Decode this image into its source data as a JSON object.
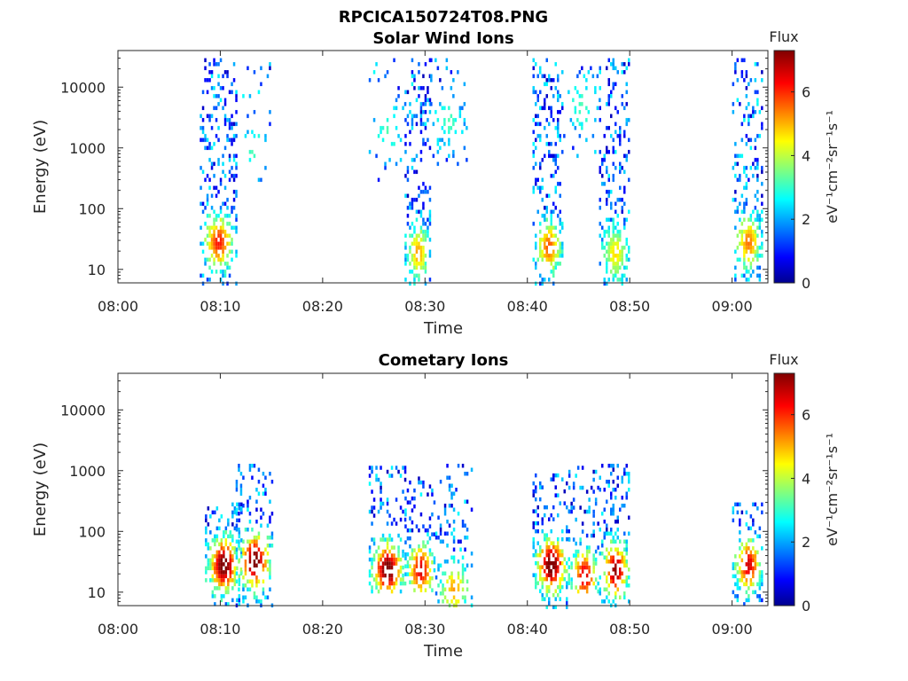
{
  "figure_title": "RPCICA150724T08.PNG",
  "colorbar_title": "Flux",
  "colors": {
    "colormap": [
      "#00008f",
      "#0000ff",
      "#00ffff",
      "#ffff00",
      "#ff0000",
      "#800000"
    ]
  },
  "chart_data": [
    {
      "type": "heatmap",
      "title": "Solar Wind Ions",
      "xlabel": "Time",
      "ylabel": "Energy (eV)",
      "yscale": "log",
      "ylim": [
        6,
        40000
      ],
      "x_ticks": [
        "08:00",
        "08:10",
        "08:20",
        "08:30",
        "08:40",
        "08:50",
        "09:00"
      ],
      "y_ticks": [
        "10",
        "100",
        "1000",
        "10000"
      ],
      "colorbar": {
        "label": "eV⁻¹cm⁻²sr⁻¹s⁻¹",
        "range": [
          0,
          7.3
        ],
        "ticks": [
          "0",
          "2",
          "4",
          "6"
        ]
      },
      "bursts": [
        {
          "start": "08:08",
          "end": "08:11.5",
          "e_min": 6,
          "e_max": 30000,
          "density": 0.6,
          "peak_flux": 5.5,
          "peak_energy": 30
        },
        {
          "start": "08:11.5",
          "end": "08:15",
          "e_min": 300,
          "e_max": 30000,
          "density": 0.15,
          "peak_flux": 2.5,
          "peak_energy": 1000
        },
        {
          "start": "08:24.5",
          "end": "08:28",
          "e_min": 300,
          "e_max": 30000,
          "density": 0.15,
          "peak_flux": 2.5,
          "peak_energy": 2000
        },
        {
          "start": "08:28",
          "end": "08:30.5",
          "e_min": 6,
          "e_max": 30000,
          "density": 0.6,
          "peak_flux": 4.5,
          "peak_energy": 20
        },
        {
          "start": "08:30.5",
          "end": "08:34",
          "e_min": 500,
          "e_max": 30000,
          "density": 0.2,
          "peak_flux": 2.5,
          "peak_energy": 3000
        },
        {
          "start": "08:40.5",
          "end": "08:43.5",
          "e_min": 6,
          "e_max": 30000,
          "density": 0.6,
          "peak_flux": 5.0,
          "peak_energy": 25
        },
        {
          "start": "08:43.5",
          "end": "08:47",
          "e_min": 700,
          "e_max": 30000,
          "density": 0.15,
          "peak_flux": 2.5,
          "peak_energy": 5000
        },
        {
          "start": "08:47",
          "end": "08:50",
          "e_min": 6,
          "e_max": 30000,
          "density": 0.6,
          "peak_flux": 4.0,
          "peak_energy": 20
        },
        {
          "start": "09:00",
          "end": "09:03",
          "e_min": 6,
          "e_max": 30000,
          "density": 0.6,
          "peak_flux": 4.8,
          "peak_energy": 30
        }
      ]
    },
    {
      "type": "heatmap",
      "title": "Cometary Ions",
      "xlabel": "Time",
      "ylabel": "Energy (eV)",
      "yscale": "log",
      "ylim": [
        6,
        40000
      ],
      "x_ticks": [
        "08:00",
        "08:10",
        "08:20",
        "08:30",
        "08:40",
        "08:50",
        "09:00"
      ],
      "y_ticks": [
        "10",
        "100",
        "1000",
        "10000"
      ],
      "colorbar": {
        "label": "eV⁻¹cm⁻²sr⁻¹s⁻¹",
        "range": [
          0,
          7.3
        ],
        "ticks": [
          "0",
          "2",
          "4",
          "6"
        ]
      },
      "bursts": [
        {
          "start": "08:08.5",
          "end": "08:12",
          "e_min": 6,
          "e_max": 300,
          "density": 0.7,
          "peak_flux": 7.0,
          "peak_energy": 30
        },
        {
          "start": "08:11.5",
          "end": "08:15",
          "e_min": 6,
          "e_max": 1300,
          "density": 0.5,
          "peak_flux": 7.0,
          "peak_energy": 35
        },
        {
          "start": "08:24.5",
          "end": "08:28",
          "e_min": 10,
          "e_max": 1200,
          "density": 0.55,
          "peak_flux": 7.0,
          "peak_energy": 25
        },
        {
          "start": "08:28",
          "end": "08:31",
          "e_min": 10,
          "e_max": 800,
          "density": 0.55,
          "peak_flux": 6.0,
          "peak_energy": 25
        },
        {
          "start": "08:31",
          "end": "08:34.5",
          "e_min": 6,
          "e_max": 1300,
          "density": 0.4,
          "peak_flux": 4.5,
          "peak_energy": 12
        },
        {
          "start": "08:40.5",
          "end": "08:44",
          "e_min": 6,
          "e_max": 900,
          "density": 0.6,
          "peak_flux": 7.0,
          "peak_energy": 30
        },
        {
          "start": "08:44",
          "end": "08:47",
          "e_min": 10,
          "e_max": 1200,
          "density": 0.45,
          "peak_flux": 6.0,
          "peak_energy": 20
        },
        {
          "start": "08:47",
          "end": "08:50",
          "e_min": 6,
          "e_max": 1300,
          "density": 0.55,
          "peak_flux": 6.5,
          "peak_energy": 25
        },
        {
          "start": "09:00",
          "end": "09:03",
          "e_min": 6,
          "e_max": 300,
          "density": 0.55,
          "peak_flux": 6.0,
          "peak_energy": 30
        }
      ]
    }
  ]
}
